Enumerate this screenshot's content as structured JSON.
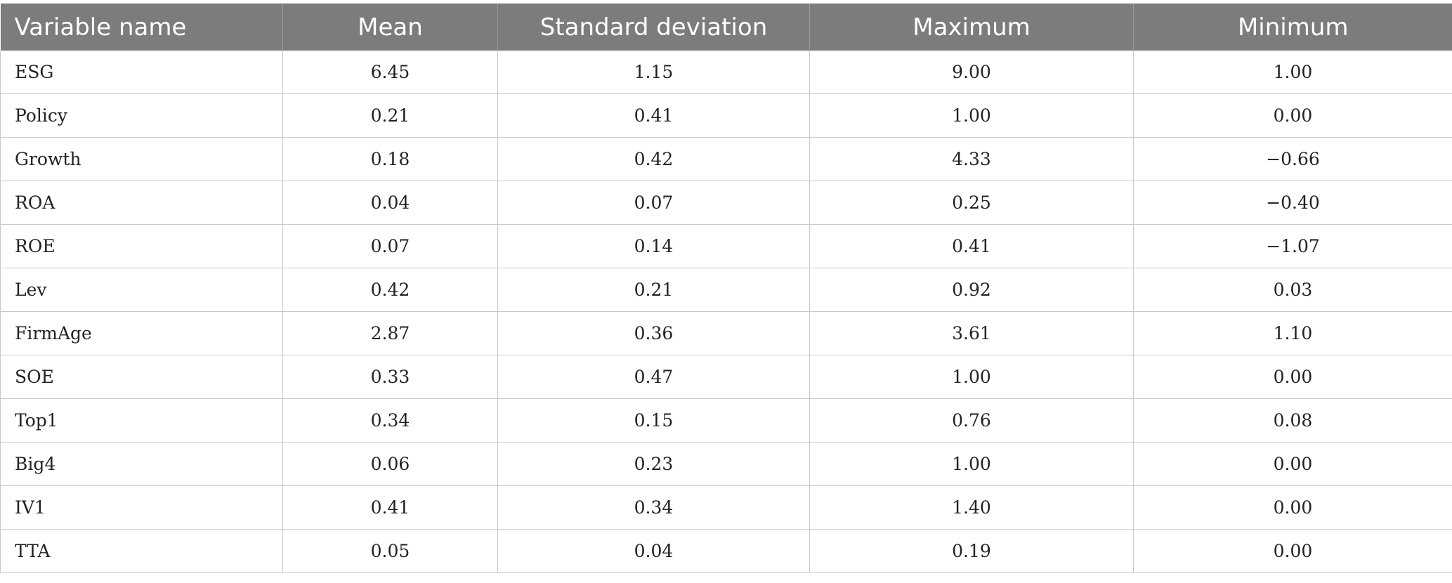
{
  "table": {
    "headers": [
      "Variable name",
      "Mean",
      "Standard deviation",
      "Maximum",
      "Minimum"
    ],
    "rows": [
      [
        "ESG",
        "6.45",
        "1.15",
        "9.00",
        "1.00"
      ],
      [
        "Policy",
        "0.21",
        "0.41",
        "1.00",
        "0.00"
      ],
      [
        "Growth",
        "0.18",
        "0.42",
        "4.33",
        "−0.66"
      ],
      [
        "ROA",
        "0.04",
        "0.07",
        "0.25",
        "−0.40"
      ],
      [
        "ROE",
        "0.07",
        "0.14",
        "0.41",
        "−1.07"
      ],
      [
        "Lev",
        "0.42",
        "0.21",
        "0.92",
        "0.03"
      ],
      [
        "FirmAge",
        "2.87",
        "0.36",
        "3.61",
        "1.10"
      ],
      [
        "SOE",
        "0.33",
        "0.47",
        "1.00",
        "0.00"
      ],
      [
        "Top1",
        "0.34",
        "0.15",
        "0.76",
        "0.08"
      ],
      [
        "Big4",
        "0.06",
        "0.23",
        "1.00",
        "0.00"
      ],
      [
        "IV1",
        "0.41",
        "0.34",
        "1.40",
        "0.00"
      ],
      [
        "TTA",
        "0.05",
        "0.04",
        "0.19",
        "0.00"
      ]
    ]
  }
}
